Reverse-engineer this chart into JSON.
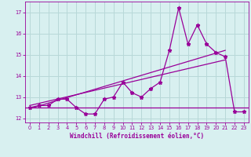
{
  "xlabel": "Windchill (Refroidissement éolien,°C)",
  "y_values": [
    12.5,
    12.6,
    12.6,
    12.9,
    12.9,
    12.5,
    12.2,
    12.2,
    12.9,
    13.0,
    13.7,
    13.2,
    13.0,
    13.4,
    13.7,
    15.2,
    17.2,
    15.5,
    16.4,
    15.5,
    15.1,
    14.9,
    12.3,
    12.3
  ],
  "x_values": [
    0,
    1,
    2,
    3,
    4,
    5,
    6,
    7,
    8,
    9,
    10,
    11,
    12,
    13,
    14,
    15,
    16,
    17,
    18,
    19,
    20,
    21,
    22,
    23
  ],
  "line_color": "#990099",
  "background_color": "#d8f0f0",
  "grid_color": "#b8d8d8",
  "ylim": [
    11.8,
    17.5
  ],
  "xlim": [
    -0.5,
    23.5
  ],
  "yticks": [
    12,
    13,
    14,
    15,
    16,
    17
  ],
  "xticks": [
    0,
    1,
    2,
    3,
    4,
    5,
    6,
    7,
    8,
    9,
    10,
    11,
    12,
    13,
    14,
    15,
    16,
    17,
    18,
    19,
    20,
    21,
    22,
    23
  ],
  "reg_line1_y0": 12.45,
  "reg_line1_y1": 15.2,
  "reg_line2_y0": 12.6,
  "reg_line2_y1": 14.75,
  "flat_line_y": 12.5,
  "reg_x0": 0,
  "reg_x1": 21
}
